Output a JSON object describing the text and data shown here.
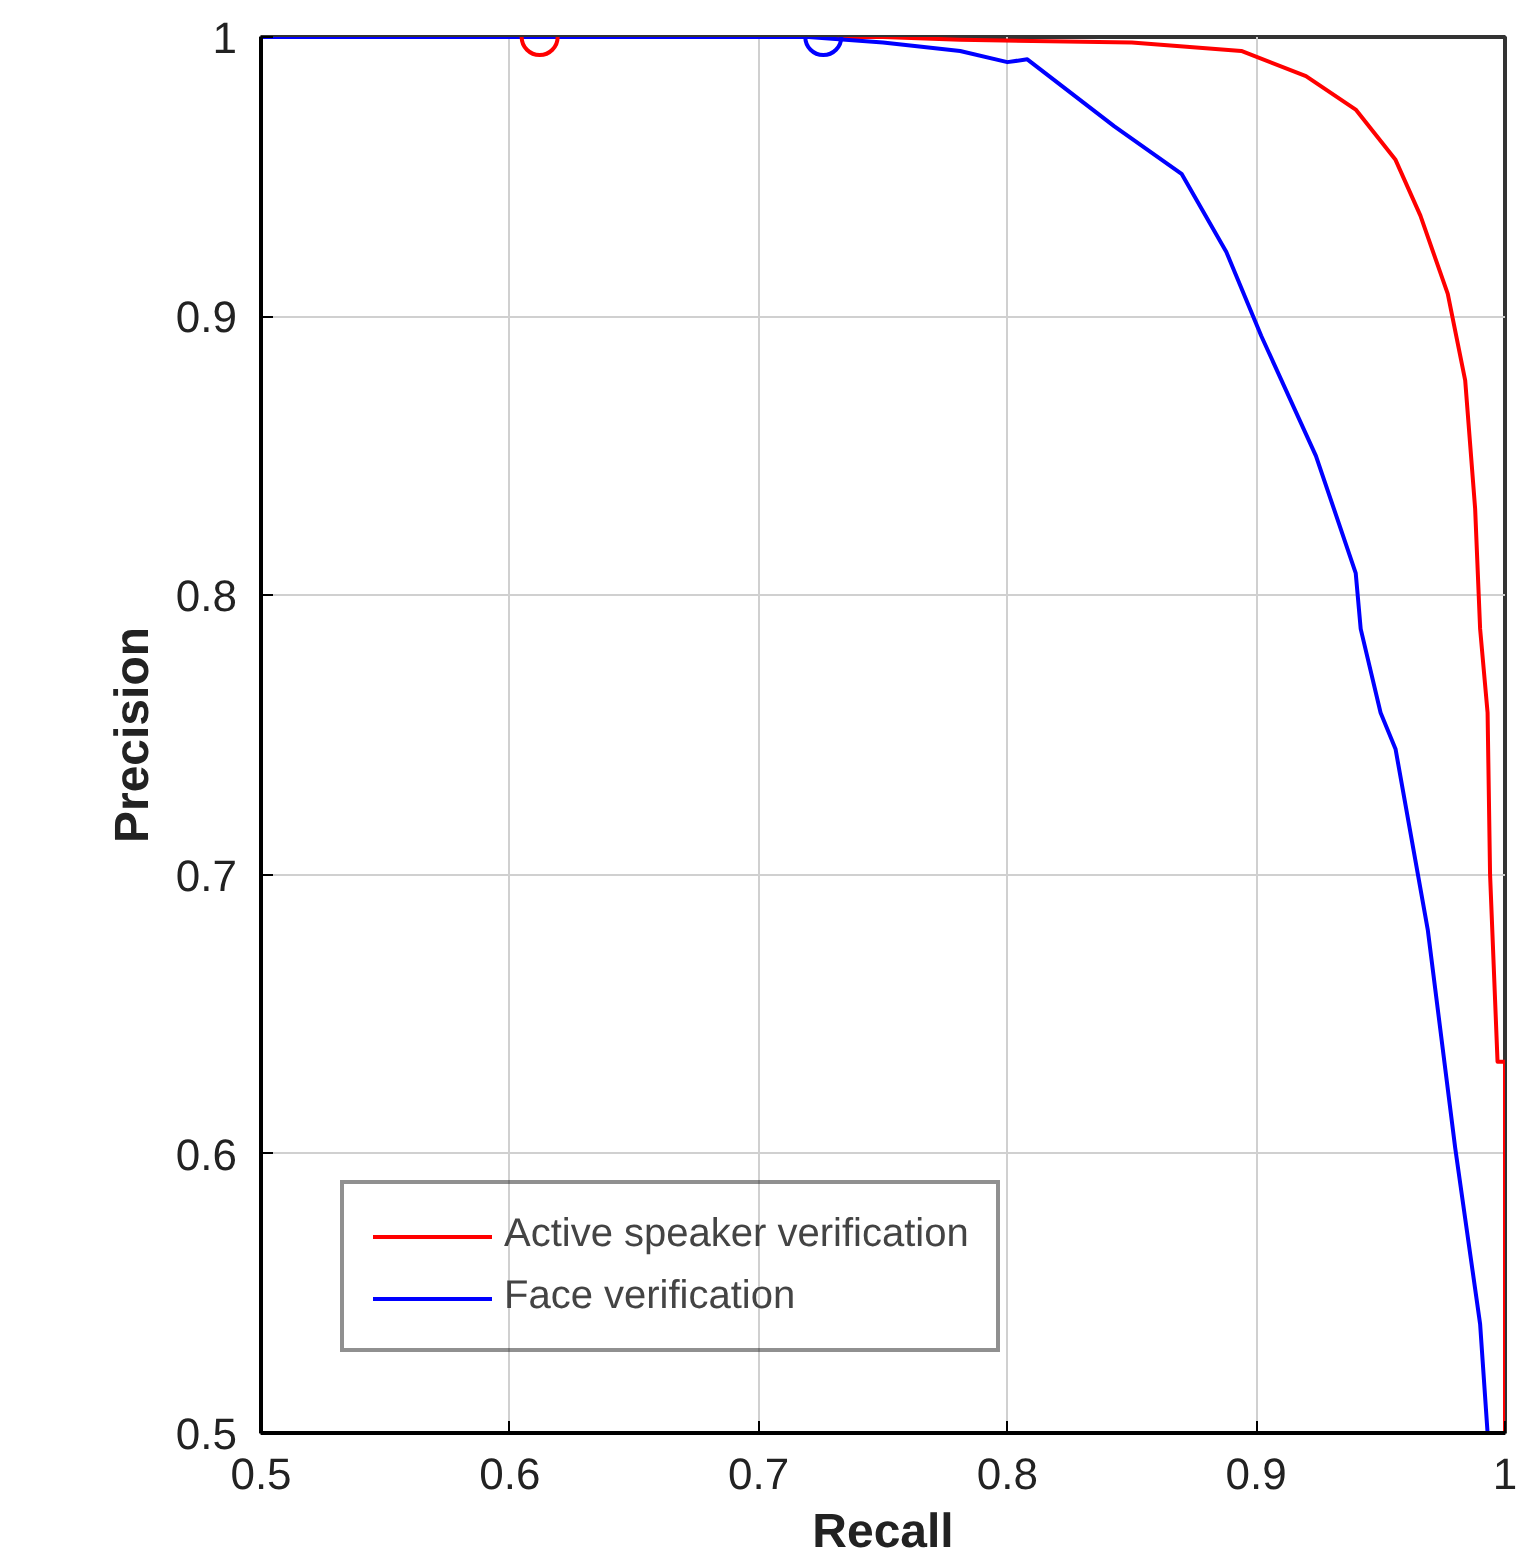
{
  "chart_data": {
    "type": "line",
    "xlabel": "Recall",
    "ylabel": "Precision",
    "xlim": [
      0.5,
      1
    ],
    "ylim": [
      0.5,
      1
    ],
    "xticks": [
      0.5,
      0.6,
      0.7,
      0.8,
      0.9,
      1
    ],
    "yticks": [
      0.5,
      0.6,
      0.7,
      0.8,
      0.9,
      1
    ],
    "grid": true,
    "legend": "bottom left",
    "line_style": "solid",
    "series": [
      {
        "name": "Active speaker verification",
        "color": "#ff0000",
        "x": [
          0.5,
          0.75,
          0.781,
          0.85,
          0.894,
          0.92,
          0.94,
          0.956,
          0.966,
          0.977,
          0.984,
          0.988,
          0.99,
          0.993,
          0.994,
          0.997,
          1.0,
          1.0,
          1.0
        ],
        "values": [
          1.0,
          1.0,
          0.999,
          0.998,
          0.995,
          0.986,
          0.974,
          0.956,
          0.936,
          0.908,
          0.877,
          0.831,
          0.788,
          0.758,
          0.7,
          0.633,
          0.633,
          0.552,
          0.5
        ]
      },
      {
        "name": "Face verification",
        "color": "#0000ff",
        "x": [
          0.5,
          0.72,
          0.75,
          0.781,
          0.8,
          0.808,
          0.843,
          0.87,
          0.888,
          0.902,
          0.924,
          0.94,
          0.942,
          0.95,
          0.956,
          0.969,
          0.98,
          0.99,
          0.993
        ],
        "values": [
          1.0,
          1.0,
          0.998,
          0.995,
          0.991,
          0.992,
          0.968,
          0.951,
          0.923,
          0.893,
          0.85,
          0.808,
          0.788,
          0.758,
          0.745,
          0.68,
          0.602,
          0.539,
          0.5
        ]
      },
      {
        "type": "scatter",
        "marker": "circle",
        "color": "#ff0000",
        "x": [
          0.612
        ],
        "values": [
          1.0
        ]
      },
      {
        "type": "scatter",
        "marker": "circle",
        "color": "#0000ff",
        "x": [
          0.726
        ],
        "values": [
          1.0
        ]
      }
    ]
  }
}
